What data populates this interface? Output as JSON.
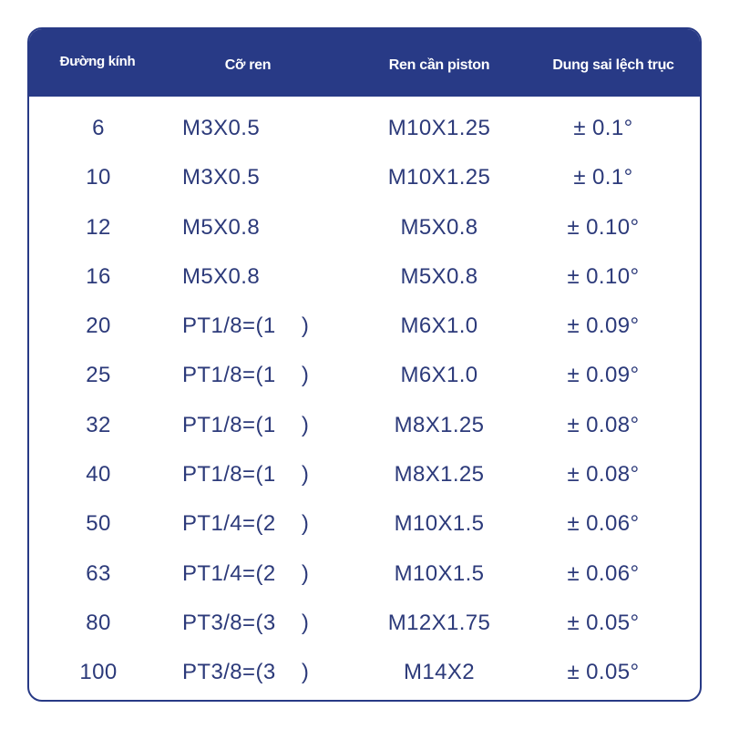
{
  "table": {
    "headers": [
      "Đường kính",
      "Cỡ ren",
      "Ren cần piston",
      "Dung sai lệch trục"
    ],
    "rows": [
      [
        "6",
        "M3X0.5",
        "M10X1.25",
        "± 0.1°"
      ],
      [
        "10",
        "M3X0.5",
        "M10X1.25",
        "± 0.1°"
      ],
      [
        "12",
        "M5X0.8",
        "M5X0.8",
        "± 0.10°"
      ],
      [
        "16",
        "M5X0.8",
        "M5X0.8",
        "± 0.10°"
      ],
      [
        "20",
        "PT1/8=(1    )",
        "M6X1.0",
        "± 0.09°"
      ],
      [
        "25",
        "PT1/8=(1    )",
        "M6X1.0",
        "± 0.09°"
      ],
      [
        "32",
        "PT1/8=(1    )",
        "M8X1.25",
        "± 0.08°"
      ],
      [
        "40",
        "PT1/8=(1    )",
        "M8X1.25",
        "± 0.08°"
      ],
      [
        "50",
        "PT1/4=(2    )",
        "M10X1.5",
        "± 0.06°"
      ],
      [
        "63",
        "PT1/4=(2    )",
        "M10X1.5",
        "± 0.06°"
      ],
      [
        "80",
        "PT3/8=(3    )",
        "M12X1.75",
        "± 0.05°"
      ],
      [
        "100",
        "PT3/8=(3    )",
        "M14X2",
        "± 0.05°"
      ]
    ]
  },
  "colors": {
    "header_bg": "#283a86",
    "header_text": "#ffffff",
    "cell_text": "#2c3a7a",
    "border": "#283a86"
  }
}
